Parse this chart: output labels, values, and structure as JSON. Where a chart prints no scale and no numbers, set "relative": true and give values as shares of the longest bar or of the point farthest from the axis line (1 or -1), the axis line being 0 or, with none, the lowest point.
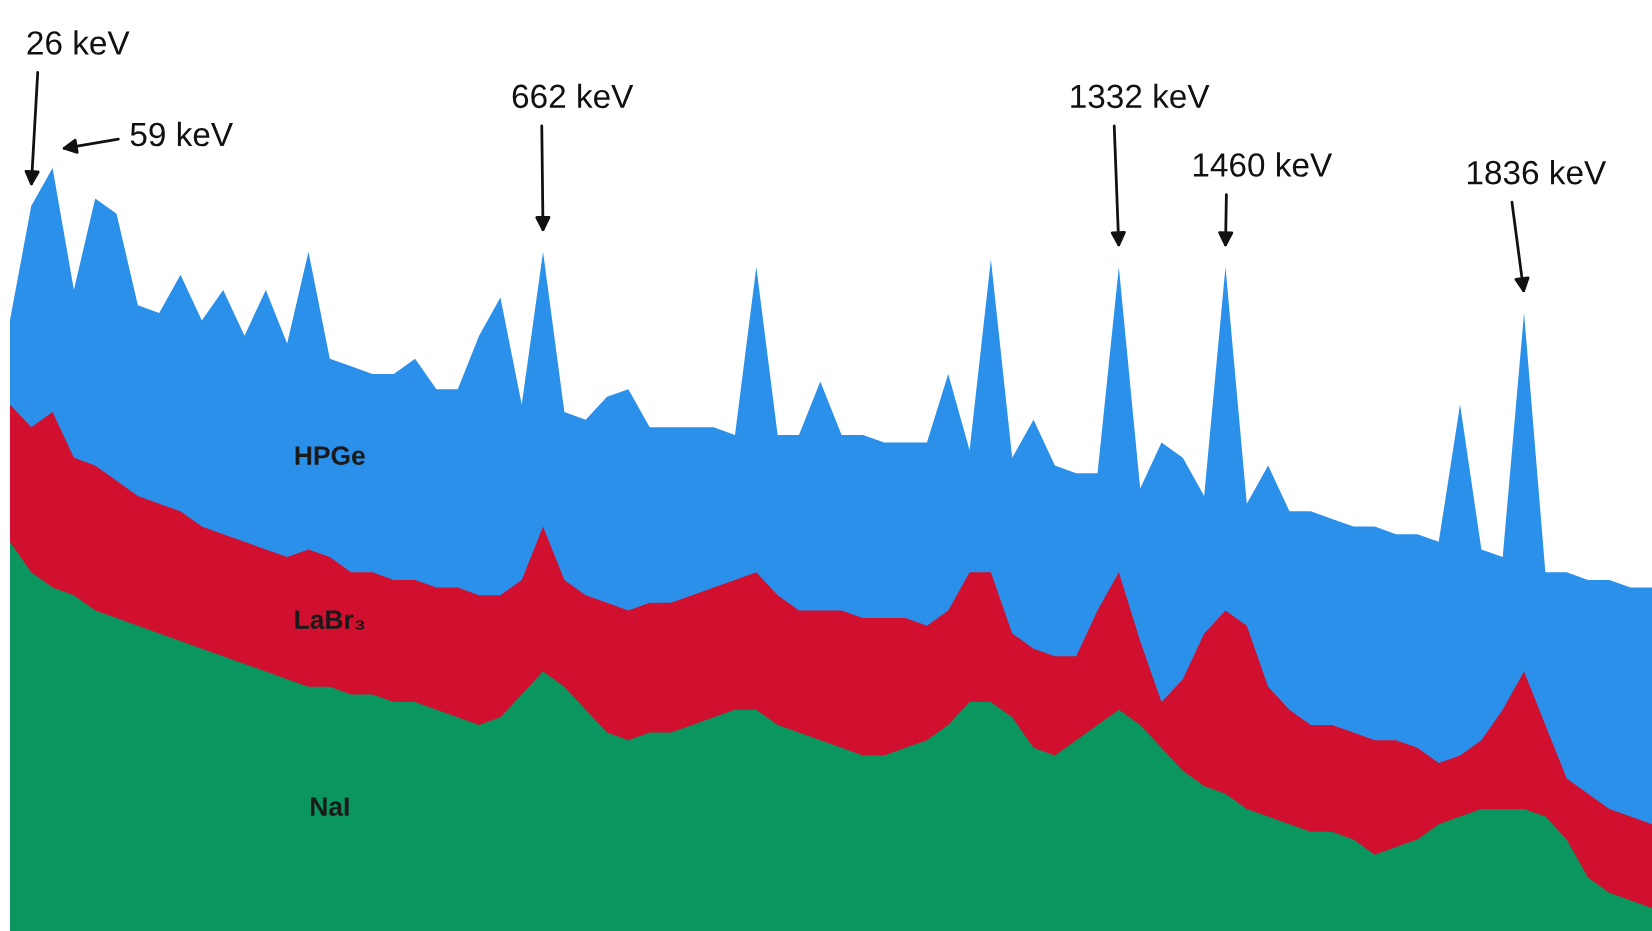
{
  "chart_data": {
    "type": "area",
    "relative": true,
    "categories": [
      null,
      null,
      null,
      null,
      null,
      null,
      null,
      null,
      null,
      null,
      null,
      null,
      null,
      null,
      null,
      null,
      null,
      null,
      null,
      null,
      null,
      null,
      null,
      null,
      null,
      null,
      null,
      null,
      null,
      null,
      null,
      null,
      null,
      null,
      null,
      null,
      null,
      null,
      null,
      null,
      null,
      null,
      null,
      null,
      null,
      null,
      null,
      null,
      null,
      null,
      null,
      null,
      null,
      null,
      null,
      null,
      null,
      null,
      null,
      null,
      null,
      null,
      null,
      null,
      null,
      null,
      null,
      null,
      null,
      null,
      null,
      null,
      null,
      null,
      null,
      null,
      null,
      null
    ],
    "series": [
      {
        "name": "HPGe",
        "color": "#2b90ea",
        "values": [
          0.8,
          0.95,
          1.0,
          0.84,
          0.96,
          0.94,
          0.82,
          0.81,
          0.86,
          0.8,
          0.84,
          0.78,
          0.84,
          0.77,
          0.89,
          0.75,
          0.74,
          0.73,
          0.73,
          0.75,
          0.71,
          0.71,
          0.78,
          0.83,
          0.69,
          0.89,
          0.68,
          0.67,
          0.7,
          0.71,
          0.66,
          0.66,
          0.66,
          0.66,
          0.65,
          0.87,
          0.65,
          0.65,
          0.72,
          0.65,
          0.65,
          0.64,
          0.64,
          0.64,
          0.73,
          0.63,
          0.88,
          0.62,
          0.67,
          0.61,
          0.6,
          0.6,
          0.87,
          0.58,
          0.64,
          0.62,
          0.57,
          0.87,
          0.56,
          0.61,
          0.55,
          0.55,
          0.54,
          0.53,
          0.53,
          0.52,
          0.52,
          0.51,
          0.69,
          0.5,
          0.49,
          0.81,
          0.47,
          0.47,
          0.46,
          0.46,
          0.45,
          0.45
        ]
      },
      {
        "name": "LaBr₃",
        "color": "#d0102e",
        "values": [
          0.69,
          0.66,
          0.68,
          0.62,
          0.61,
          0.59,
          0.57,
          0.56,
          0.55,
          0.53,
          0.52,
          0.51,
          0.5,
          0.49,
          0.5,
          0.49,
          0.47,
          0.47,
          0.46,
          0.46,
          0.45,
          0.45,
          0.44,
          0.44,
          0.46,
          0.53,
          0.46,
          0.44,
          0.43,
          0.42,
          0.43,
          0.43,
          0.44,
          0.45,
          0.46,
          0.47,
          0.44,
          0.42,
          0.42,
          0.42,
          0.41,
          0.41,
          0.41,
          0.4,
          0.42,
          0.47,
          0.47,
          0.39,
          0.37,
          0.36,
          0.36,
          0.42,
          0.47,
          0.38,
          0.3,
          0.33,
          0.39,
          0.42,
          0.4,
          0.32,
          0.29,
          0.27,
          0.27,
          0.26,
          0.25,
          0.25,
          0.24,
          0.22,
          0.23,
          0.25,
          0.29,
          0.34,
          0.27,
          0.2,
          0.18,
          0.16,
          0.15,
          0.14
        ]
      },
      {
        "name": "NaI",
        "color": "#0b9660",
        "values": [
          0.51,
          0.47,
          0.45,
          0.44,
          0.42,
          0.41,
          0.4,
          0.39,
          0.38,
          0.37,
          0.36,
          0.35,
          0.34,
          0.33,
          0.32,
          0.32,
          0.31,
          0.31,
          0.3,
          0.3,
          0.29,
          0.28,
          0.27,
          0.28,
          0.31,
          0.34,
          0.32,
          0.29,
          0.26,
          0.25,
          0.26,
          0.26,
          0.27,
          0.28,
          0.29,
          0.29,
          0.27,
          0.26,
          0.25,
          0.24,
          0.23,
          0.23,
          0.24,
          0.25,
          0.27,
          0.3,
          0.3,
          0.28,
          0.24,
          0.23,
          0.25,
          0.27,
          0.29,
          0.27,
          0.24,
          0.21,
          0.19,
          0.18,
          0.16,
          0.15,
          0.14,
          0.13,
          0.13,
          0.12,
          0.1,
          0.11,
          0.12,
          0.14,
          0.15,
          0.16,
          0.16,
          0.16,
          0.15,
          0.12,
          0.07,
          0.05,
          0.04,
          0.03
        ]
      }
    ],
    "annotations": [
      "26 keV",
      "59 keV",
      "662 keV",
      "1332 keV",
      "1460 keV",
      "1836 keV"
    ]
  }
}
